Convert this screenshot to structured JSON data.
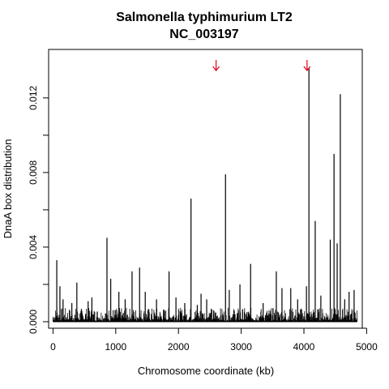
{
  "chart_data": {
    "type": "bar",
    "title": "Salmonella typhimurium LT2",
    "subtitle": "NC_003197",
    "xlabel": "Chromosome coordinate (kb)",
    "ylabel": "DnaA box distribution",
    "xlim": [
      -70,
      4930
    ],
    "ylim": [
      -0.00035,
      0.0146
    ],
    "x_ticks": [
      0,
      1000,
      2000,
      3000,
      4000,
      5000
    ],
    "y_ticks": [
      0.0,
      0.002,
      0.004,
      0.006,
      0.008,
      0.01,
      0.012
    ],
    "y_tick_labels": [
      "0.000",
      "",
      "0.004",
      "",
      "0.008",
      "",
      "0.012"
    ],
    "grid": false,
    "line_color": "#000000",
    "arrow_color": "#e0001b",
    "arrows_x": [
      2600,
      4050
    ],
    "peaks": [
      {
        "x": 60,
        "y": 0.0033
      },
      {
        "x": 110,
        "y": 0.0019
      },
      {
        "x": 160,
        "y": 0.0012
      },
      {
        "x": 300,
        "y": 0.001
      },
      {
        "x": 380,
        "y": 0.0021
      },
      {
        "x": 560,
        "y": 0.0011
      },
      {
        "x": 620,
        "y": 0.0013
      },
      {
        "x": 860,
        "y": 0.0045
      },
      {
        "x": 920,
        "y": 0.0023
      },
      {
        "x": 1050,
        "y": 0.0016
      },
      {
        "x": 1150,
        "y": 0.0012
      },
      {
        "x": 1260,
        "y": 0.0027
      },
      {
        "x": 1380,
        "y": 0.0029
      },
      {
        "x": 1470,
        "y": 0.0016
      },
      {
        "x": 1650,
        "y": 0.0012
      },
      {
        "x": 1850,
        "y": 0.0027
      },
      {
        "x": 1960,
        "y": 0.0013
      },
      {
        "x": 2100,
        "y": 0.001
      },
      {
        "x": 2200,
        "y": 0.0066
      },
      {
        "x": 2300,
        "y": 0.0009
      },
      {
        "x": 2360,
        "y": 0.0015
      },
      {
        "x": 2450,
        "y": 0.0012
      },
      {
        "x": 2750,
        "y": 0.0079
      },
      {
        "x": 2810,
        "y": 0.0017
      },
      {
        "x": 2980,
        "y": 0.002
      },
      {
        "x": 3150,
        "y": 0.0031
      },
      {
        "x": 3350,
        "y": 0.001
      },
      {
        "x": 3560,
        "y": 0.0027
      },
      {
        "x": 3650,
        "y": 0.0018
      },
      {
        "x": 3790,
        "y": 0.0018
      },
      {
        "x": 3900,
        "y": 0.0012
      },
      {
        "x": 4040,
        "y": 0.0019
      },
      {
        "x": 4080,
        "y": 0.0136
      },
      {
        "x": 4180,
        "y": 0.0054
      },
      {
        "x": 4270,
        "y": 0.0014
      },
      {
        "x": 4420,
        "y": 0.0044
      },
      {
        "x": 4480,
        "y": 0.009
      },
      {
        "x": 4530,
        "y": 0.0042
      },
      {
        "x": 4580,
        "y": 0.0122
      },
      {
        "x": 4650,
        "y": 0.0012
      },
      {
        "x": 4720,
        "y": 0.0016
      },
      {
        "x": 4800,
        "y": 0.0017
      }
    ]
  }
}
